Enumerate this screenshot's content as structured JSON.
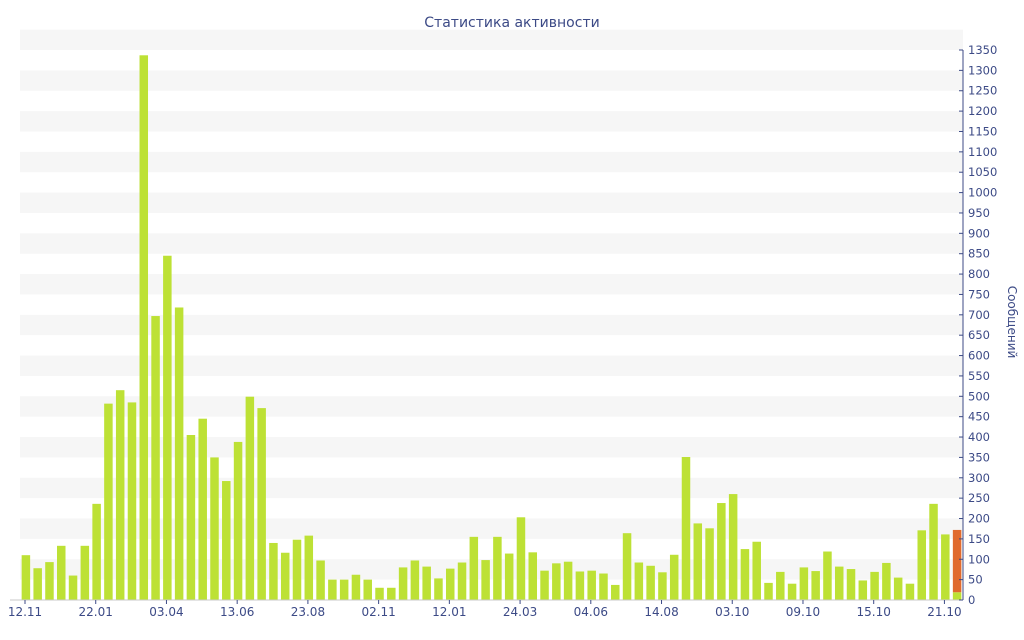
{
  "chart_data": {
    "type": "bar",
    "title": "Статистика активности",
    "ylabel": "Сообщений",
    "xlabel": "",
    "ylim": [
      0,
      1350
    ],
    "y_tick_step": 50,
    "y_axis_side": "right",
    "grid": "alternating horizontal bands",
    "x_tick_labels": [
      "12.11",
      "22.01",
      "03.04",
      "13.06",
      "23.08",
      "02.11",
      "12.01",
      "24.03",
      "04.06",
      "14.08",
      "03.10",
      "09.10",
      "15.10",
      "21.10"
    ],
    "values": [
      110,
      78,
      93,
      133,
      60,
      133,
      236,
      482,
      515,
      485,
      1337,
      697,
      845,
      718,
      405,
      445,
      350,
      292,
      388,
      499,
      471,
      140,
      116,
      148,
      158,
      97,
      50,
      50,
      62,
      50,
      30,
      30,
      80,
      97,
      82,
      53,
      77,
      92,
      155,
      98,
      155,
      114,
      203,
      117,
      72,
      90,
      94,
      70,
      72,
      65,
      37,
      164,
      92,
      84,
      68,
      111,
      351,
      188,
      176,
      238,
      260,
      125,
      143,
      42,
      69,
      40,
      80,
      71,
      119,
      82,
      76,
      48,
      69,
      91,
      55,
      40,
      171,
      236,
      161,
      172
    ],
    "highlight": {
      "index": 79,
      "segment_value": 153,
      "base_value": 19
    },
    "colors": {
      "bar": "#bde135",
      "highlight": "#e06a2e",
      "axis": "#3c4a86",
      "band": "#f6f6f6"
    }
  }
}
